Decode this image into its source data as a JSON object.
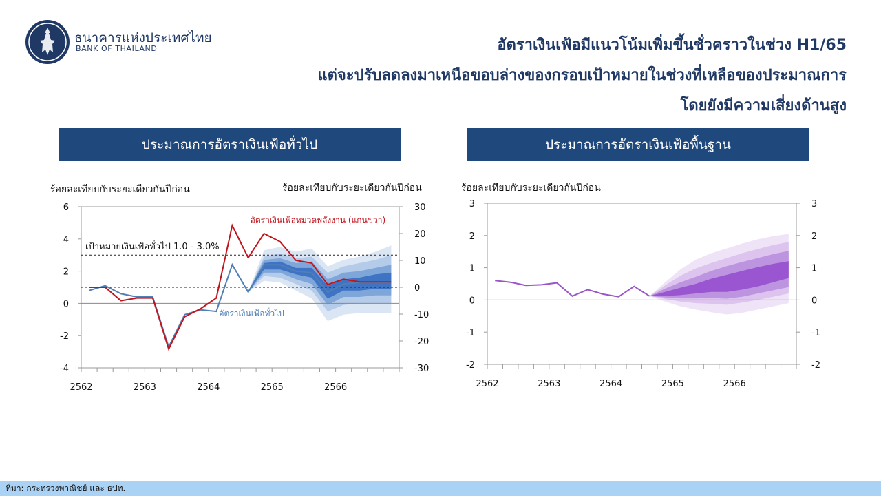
{
  "header": {
    "org_name_th": "ธนาคารแห่งประเทศไทย",
    "org_name_en": "BANK OF THAILAND",
    "headline": [
      "อัตราเงินเฟ้อมีแนวโน้มเพิ่มขึ้นชั่วคราวในช่วง  H1/65",
      "แต่จะปรับลดลงมาเหนือขอบล่างของกรอบเป้าหมายในช่วงที่เหลือของประมาณการ",
      "โดยยังมีความเสี่ยงด้านสูง"
    ]
  },
  "left_panel": {
    "title": "ประมาณการอัตราเงินเฟ้อทั่วไป",
    "left_unit": "ร้อยละเทียบกับระยะเดียวกันปีก่อน",
    "right_unit": "ร้อยละเทียบกับระยะเดียวกันปีก่อน"
  },
  "right_panel": {
    "title": "ประมาณการอัตราเงินเฟ้อพื้นฐาน",
    "left_unit": "ร้อยละเทียบกับระยะเดียวกันปีก่อน"
  },
  "footer": {
    "source": "ที่มา: กระทรวงพาณิชย์ และ ธปท."
  },
  "colors": {
    "headline": "#1f3864",
    "panel_title_bg": "#1f497d",
    "headline_series": "#4f7fb5",
    "energy_series": "#c0151d",
    "fan_blue": [
      "#dbe6f5",
      "#b4cbea",
      "#7fa6d9",
      "#3f73c4"
    ],
    "core_series": "#9a55c8",
    "fan_purple": [
      "#efe4f7",
      "#dcc4ef",
      "#bd94e0",
      "#9a55d0"
    ],
    "footer_bg": "#a9d2f5"
  },
  "chart_data": [
    {
      "type": "line",
      "title": "ประมาณการอัตราเงินเฟ้อทั่วไป",
      "x_unit": "quarter",
      "x_ticklabels": [
        "2562",
        "2563",
        "2564",
        "2565",
        "2566"
      ],
      "x_range": [
        "2562Q1",
        "2566Q4"
      ],
      "ylim_left": [
        -4,
        6
      ],
      "yticks_left": [
        -4,
        -2,
        0,
        2,
        4,
        6
      ],
      "ylim_right": [
        -30,
        30
      ],
      "yticks_right": [
        -30,
        -20,
        -10,
        0,
        10,
        20,
        30
      ],
      "grid": false,
      "reference_lines": [
        {
          "label": "เป้าหมายเงินเฟ้อทั่วไป  1.0 - 3.0%",
          "y": [
            1.0,
            3.0
          ],
          "style": "dashed"
        }
      ],
      "series": [
        {
          "name": "อัตราเงินเฟ้อทั่วไป",
          "axis": "left",
          "x": [
            "2562Q1",
            "2562Q2",
            "2562Q3",
            "2562Q4",
            "2563Q1",
            "2563Q2",
            "2563Q3",
            "2563Q4",
            "2564Q1",
            "2564Q2",
            "2564Q3",
            "2564Q4",
            "2565Q1",
            "2565Q2",
            "2565Q3",
            "2565Q4",
            "2566Q1",
            "2566Q2",
            "2566Q3",
            "2566Q4"
          ],
          "values": [
            0.8,
            1.1,
            0.6,
            0.4,
            0.4,
            -2.7,
            -0.7,
            -0.4,
            -0.5,
            2.4,
            0.7,
            2.4,
            2.4,
            2.0,
            1.9,
            0.7,
            1.2,
            1.3,
            1.3,
            1.3
          ]
        },
        {
          "name": "อัตราเงินเฟ้อหมวดพลังงาน  (แกนขวา)",
          "axis": "right",
          "x": [
            "2562Q1",
            "2562Q2",
            "2562Q3",
            "2562Q4",
            "2563Q1",
            "2563Q2",
            "2563Q3",
            "2563Q4",
            "2564Q1",
            "2564Q2",
            "2564Q3",
            "2564Q4",
            "2565Q1",
            "2565Q2",
            "2565Q3",
            "2565Q4",
            "2566Q1",
            "2566Q2",
            "2566Q3",
            "2566Q4"
          ],
          "values": [
            0,
            0,
            -5,
            -4,
            -4,
            -23,
            -11,
            -8,
            -4,
            23,
            11,
            20,
            17,
            10,
            9,
            1,
            3,
            2,
            2,
            2
          ]
        }
      ],
      "fan": {
        "axis": "left",
        "x": [
          "2564Q3",
          "2564Q4",
          "2565Q1",
          "2565Q2",
          "2565Q3",
          "2565Q4",
          "2566Q1",
          "2566Q2",
          "2566Q3",
          "2566Q4"
        ],
        "bands": [
          {
            "lower": [
              0.7,
              1.4,
              1.3,
              0.8,
              0.3,
              -1.1,
              -0.7,
              -0.6,
              -0.6,
              -0.6
            ],
            "upper": [
              0.7,
              3.3,
              3.5,
              3.2,
              3.4,
              2.3,
              2.7,
              2.9,
              3.2,
              3.6
            ]
          },
          {
            "lower": [
              0.7,
              1.7,
              1.6,
              1.2,
              0.8,
              -0.5,
              -0.1,
              0.0,
              0.0,
              0.0
            ],
            "upper": [
              0.7,
              2.9,
              3.1,
              2.8,
              2.9,
              1.9,
              2.3,
              2.5,
              2.7,
              3.0
            ]
          },
          {
            "lower": [
              0.7,
              1.9,
              1.9,
              1.5,
              1.2,
              -0.1,
              0.4,
              0.4,
              0.5,
              0.5
            ],
            "upper": [
              0.7,
              2.7,
              2.8,
              2.5,
              2.6,
              1.5,
              1.9,
              2.0,
              2.2,
              2.4
            ]
          },
          {
            "lower": [
              0.7,
              2.1,
              2.1,
              1.8,
              1.6,
              0.3,
              0.8,
              0.8,
              0.9,
              0.9
            ],
            "upper": [
              0.7,
              2.5,
              2.6,
              2.2,
              2.2,
              1.1,
              1.5,
              1.6,
              1.8,
              1.9
            ]
          }
        ]
      }
    },
    {
      "type": "line",
      "title": "ประมาณการอัตราเงินเฟ้อพื้นฐาน",
      "x_unit": "quarter",
      "x_ticklabels": [
        "2562",
        "2563",
        "2564",
        "2565",
        "2566"
      ],
      "x_range": [
        "2562Q1",
        "2566Q4"
      ],
      "ylim_left": [
        -2,
        3
      ],
      "yticks_left": [
        -2,
        -1,
        0,
        1,
        2,
        3
      ],
      "ylim_right": [
        -2,
        3
      ],
      "yticks_right": [
        -2,
        -1,
        0,
        1,
        2,
        3
      ],
      "grid": false,
      "series": [
        {
          "name": "",
          "axis": "left",
          "x": [
            "2562Q1",
            "2562Q2",
            "2562Q3",
            "2562Q4",
            "2563Q1",
            "2563Q2",
            "2563Q3",
            "2563Q4",
            "2564Q1",
            "2564Q2",
            "2564Q3"
          ],
          "values": [
            0.6,
            0.55,
            0.45,
            0.47,
            0.53,
            0.12,
            0.32,
            0.18,
            0.1,
            0.42,
            0.12
          ]
        }
      ],
      "fan": {
        "axis": "left",
        "x": [
          "2564Q3",
          "2564Q4",
          "2565Q1",
          "2565Q2",
          "2565Q3",
          "2565Q4",
          "2566Q1",
          "2566Q2",
          "2566Q3",
          "2566Q4"
        ],
        "bands": [
          {
            "lower": [
              0.12,
              -0.05,
              -0.2,
              -0.3,
              -0.38,
              -0.45,
              -0.4,
              -0.3,
              -0.2,
              -0.1
            ],
            "upper": [
              0.12,
              0.55,
              0.95,
              1.25,
              1.45,
              1.6,
              1.75,
              1.88,
              1.98,
              2.05
            ]
          },
          {
            "lower": [
              0.12,
              0.03,
              -0.05,
              -0.1,
              -0.12,
              -0.15,
              -0.08,
              0.0,
              0.1,
              0.2
            ],
            "upper": [
              0.12,
              0.45,
              0.75,
              0.98,
              1.15,
              1.3,
              1.45,
              1.58,
              1.7,
              1.8
            ]
          },
          {
            "lower": [
              0.12,
              0.08,
              0.05,
              0.05,
              0.06,
              0.04,
              0.1,
              0.2,
              0.3,
              0.4
            ],
            "upper": [
              0.12,
              0.35,
              0.55,
              0.72,
              0.9,
              1.05,
              1.18,
              1.3,
              1.42,
              1.52
            ]
          },
          {
            "lower": [
              0.12,
              0.12,
              0.15,
              0.2,
              0.25,
              0.25,
              0.32,
              0.42,
              0.55,
              0.68
            ],
            "upper": [
              0.12,
              0.25,
              0.38,
              0.5,
              0.66,
              0.78,
              0.9,
              1.02,
              1.12,
              1.2
            ]
          }
        ]
      }
    }
  ]
}
